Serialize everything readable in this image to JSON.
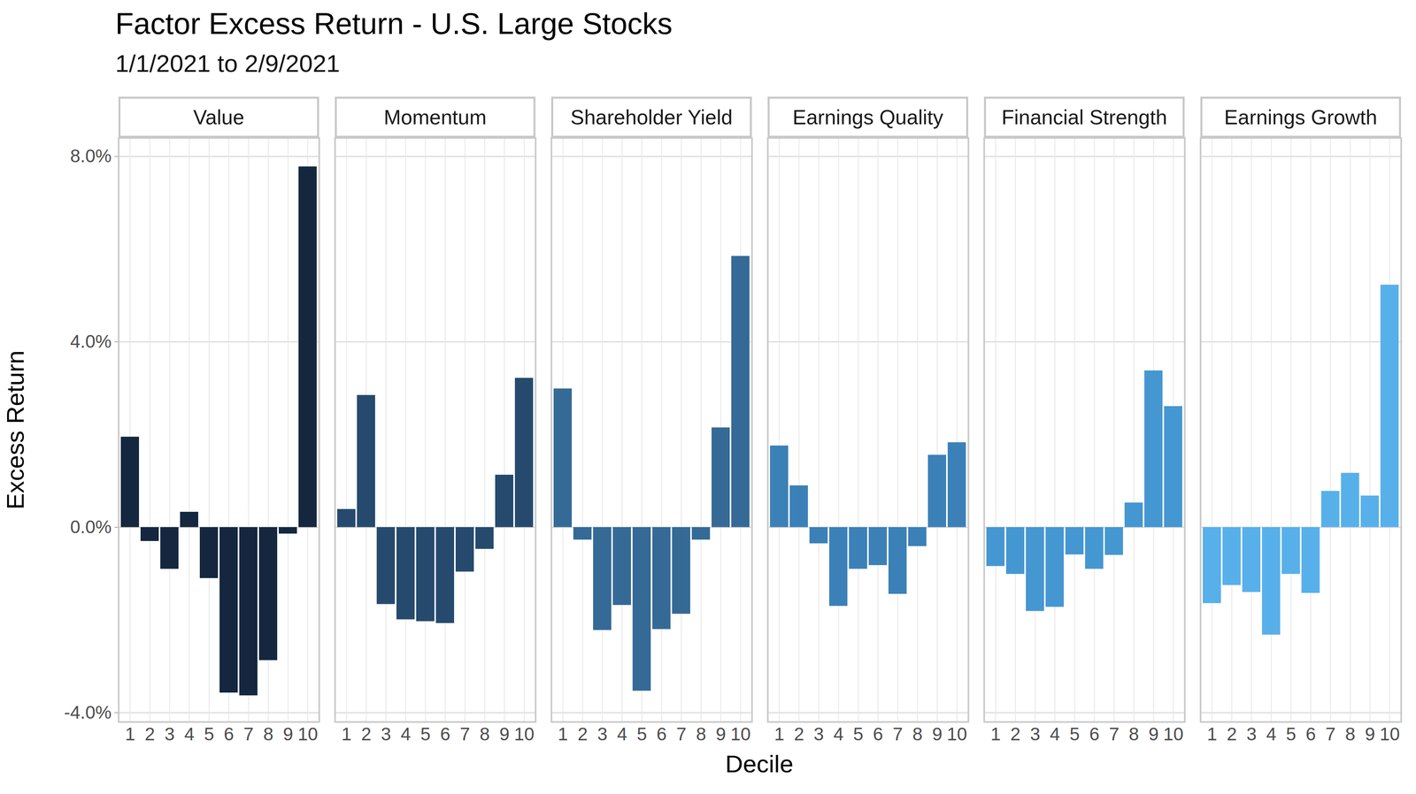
{
  "chart_data": {
    "type": "bar",
    "title": "Factor Excess Return - U.S. Large Stocks",
    "subtitle": "1/1/2021 to 2/9/2021",
    "x_label": "Decile",
    "y_label": "Excess Return",
    "categories": [
      "1",
      "2",
      "3",
      "4",
      "5",
      "6",
      "7",
      "8",
      "9",
      "10"
    ],
    "series": [
      {
        "name": "Value",
        "color": "#14273f",
        "values": [
          1.95,
          -0.3,
          -0.9,
          0.33,
          -1.1,
          -3.57,
          -3.63,
          -2.87,
          -0.14,
          7.78
        ]
      },
      {
        "name": "Momentum",
        "color": "#264a6e",
        "values": [
          0.39,
          2.85,
          -1.66,
          -1.99,
          -2.03,
          -2.07,
          -0.96,
          -0.47,
          1.13,
          3.22
        ]
      },
      {
        "name": "Shareholder Yield",
        "color": "#356a96",
        "values": [
          2.99,
          -0.27,
          -2.22,
          -1.68,
          -3.53,
          -2.2,
          -1.87,
          -0.27,
          2.15,
          5.85
        ]
      },
      {
        "name": "Earnings Quality",
        "color": "#3b81b7",
        "values": [
          1.76,
          0.9,
          -0.35,
          -1.7,
          -0.9,
          -0.82,
          -1.44,
          -0.41,
          1.56,
          1.83
        ]
      },
      {
        "name": "Financial Strength",
        "color": "#4597d2",
        "values": [
          -0.84,
          -1.01,
          -1.81,
          -1.72,
          -0.59,
          -0.9,
          -0.6,
          0.53,
          3.38,
          2.61
        ]
      },
      {
        "name": "Earnings Growth",
        "color": "#58b0ea",
        "values": [
          -1.64,
          -1.25,
          -1.4,
          -2.32,
          -1.01,
          -1.42,
          0.78,
          1.17,
          0.68,
          5.23
        ]
      }
    ],
    "ylim": [
      -4.2,
      8.4
    ],
    "yticks": [
      {
        "value": -4,
        "label": "-4.0%"
      },
      {
        "value": 0,
        "label": "0.0%"
      },
      {
        "value": 4,
        "label": "4.0%"
      },
      {
        "value": 8,
        "label": "8.0%"
      }
    ],
    "grid": true
  }
}
